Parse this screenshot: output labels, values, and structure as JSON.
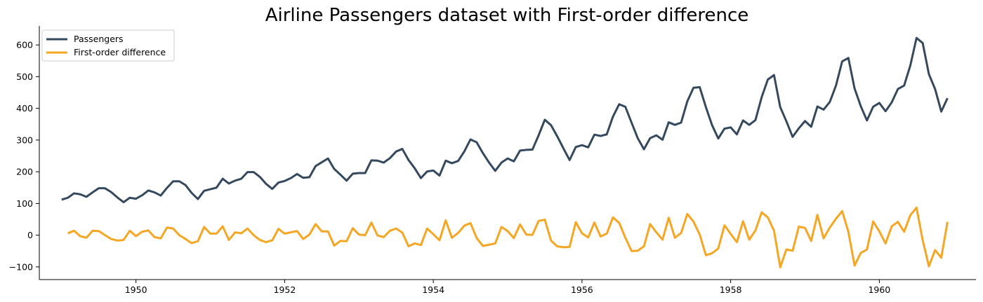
{
  "chart_data": {
    "type": "line",
    "title": "Airline Passengers dataset with First-order difference",
    "xlabel": "",
    "ylabel": "",
    "x_start": "1949-01",
    "x_frequency": "monthly",
    "xlim": [
      1948.7,
      1961.3
    ],
    "ylim": [
      -140,
      660
    ],
    "xticks": [
      1950,
      1952,
      1954,
      1956,
      1958,
      1960
    ],
    "yticks": [
      -100,
      0,
      100,
      200,
      300,
      400,
      500,
      600
    ],
    "grid": false,
    "legend_position": "top-left",
    "series": [
      {
        "name": "Passengers",
        "color": "#34495e",
        "values": [
          112,
          118,
          132,
          129,
          121,
          135,
          148,
          148,
          136,
          119,
          104,
          118,
          115,
          126,
          141,
          135,
          125,
          149,
          170,
          170,
          158,
          133,
          114,
          140,
          145,
          150,
          178,
          163,
          172,
          178,
          199,
          199,
          184,
          162,
          146,
          166,
          171,
          180,
          193,
          181,
          183,
          218,
          230,
          242,
          209,
          191,
          172,
          194,
          196,
          196,
          236,
          235,
          229,
          243,
          264,
          272,
          237,
          211,
          180,
          201,
          204,
          188,
          235,
          227,
          234,
          264,
          302,
          293,
          259,
          229,
          203,
          229,
          242,
          233,
          267,
          269,
          270,
          315,
          364,
          347,
          312,
          274,
          237,
          278,
          284,
          277,
          317,
          313,
          318,
          374,
          413,
          405,
          355,
          306,
          271,
          306,
          315,
          301,
          356,
          348,
          355,
          422,
          465,
          467,
          404,
          347,
          305,
          336,
          340,
          318,
          362,
          348,
          363,
          435,
          491,
          505,
          404,
          359,
          310,
          337,
          360,
          342,
          406,
          396,
          420,
          472,
          548,
          559,
          463,
          407,
          362,
          405,
          417,
          391,
          419,
          461,
          472,
          535,
          622,
          606,
          508,
          461,
          390,
          432
        ]
      },
      {
        "name": "First-order difference",
        "color": "#f5a623",
        "values": [
          null,
          6,
          14,
          -3,
          -8,
          14,
          13,
          0,
          -12,
          -17,
          -15,
          14,
          -3,
          11,
          15,
          -6,
          -10,
          24,
          21,
          0,
          -12,
          -25,
          -19,
          26,
          5,
          5,
          28,
          -15,
          9,
          6,
          21,
          0,
          -15,
          -22,
          -16,
          20,
          5,
          9,
          13,
          -12,
          2,
          35,
          12,
          12,
          -33,
          -18,
          -19,
          22,
          2,
          0,
          40,
          -1,
          -6,
          14,
          21,
          8,
          -35,
          -26,
          -31,
          21,
          3,
          -16,
          47,
          -8,
          7,
          30,
          38,
          -9,
          -34,
          -30,
          -26,
          26,
          13,
          -9,
          34,
          2,
          1,
          45,
          49,
          -17,
          -35,
          -38,
          -37,
          41,
          6,
          -7,
          40,
          -4,
          5,
          56,
          39,
          -8,
          -50,
          -49,
          -35,
          35,
          9,
          -14,
          55,
          -8,
          7,
          67,
          43,
          2,
          -63,
          -57,
          -42,
          31,
          4,
          -22,
          44,
          -14,
          15,
          72,
          56,
          14,
          -101,
          -45,
          -49,
          27,
          23,
          -18,
          64,
          -10,
          24,
          52,
          76,
          11,
          -96,
          -56,
          -45,
          43,
          12,
          -26,
          28,
          42,
          11,
          63,
          87,
          -16,
          -98,
          -47,
          -71,
          42
        ]
      }
    ]
  }
}
